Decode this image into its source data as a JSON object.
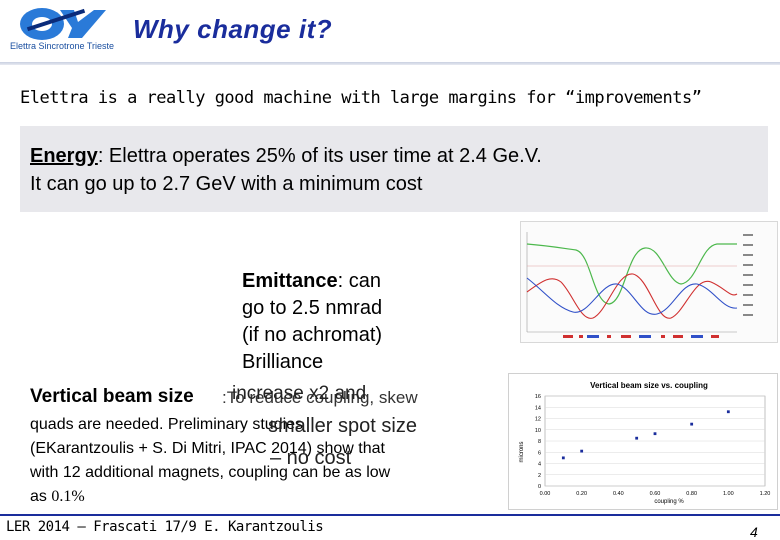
{
  "header": {
    "title": "Why change it?",
    "logo_caption_brand": "Elettra",
    "logo_caption_rest": " Sincrotrone Trieste"
  },
  "lead_text": "Elettra is a really good machine with large margins for “improvements”",
  "energy": {
    "keyword": "Energy",
    "line1_rest": ": Elettra operates 25% of its user time at 2.4 Ge.V.",
    "line2": "It can go up to 2.7 GeV with a minimum cost"
  },
  "emittance": {
    "keyword": "Emittance",
    "line1_rest": ": can",
    "line2": "go to 2.5 nmrad",
    "line3": "(if no achromat)",
    "line4": "Brilliance"
  },
  "vertical_beam": {
    "keyword": "Vertical beam size",
    "keyword_suffix": ":To reduce coupling, skew",
    "body_line1": "quads are needed. Preliminary studies",
    "body_line2": "(EKarantzoulis + S. Di Mitri, IPAC 2014) show that",
    "body_line3": "with 12 additional magnets, coupling can be as low",
    "body_line4_prefix": "as ",
    "body_line4_value": "0.1%",
    "overlay1": "increase x2 and",
    "overlay1b": "smaller spot size",
    "overlay2": "– no cost"
  },
  "chart_data": {
    "type": "scatter",
    "title": "Vertical beam size vs. coupling",
    "xlabel": "coupling %",
    "ylabel": "microns",
    "xlim": [
      0.0,
      1.2
    ],
    "ylim": [
      0,
      16
    ],
    "x_ticks": [
      "0.00",
      "0.20",
      "0.40",
      "0.60",
      "0.80",
      "1.00",
      "1.20"
    ],
    "y_ticks": [
      "0",
      "2",
      "4",
      "6",
      "8",
      "10",
      "12",
      "14",
      "16"
    ],
    "grid": true,
    "points": [
      {
        "x": 0.1,
        "y": 5.0
      },
      {
        "x": 0.2,
        "y": 6.2
      },
      {
        "x": 0.5,
        "y": 8.5
      },
      {
        "x": 0.6,
        "y": 9.3
      },
      {
        "x": 0.8,
        "y": 11.0
      },
      {
        "x": 1.0,
        "y": 13.2
      }
    ],
    "color": "#1a2d9c"
  },
  "footer": {
    "left": "LER 2014 – Frascati 17/9   E. Karantzoulis",
    "page": "4"
  }
}
